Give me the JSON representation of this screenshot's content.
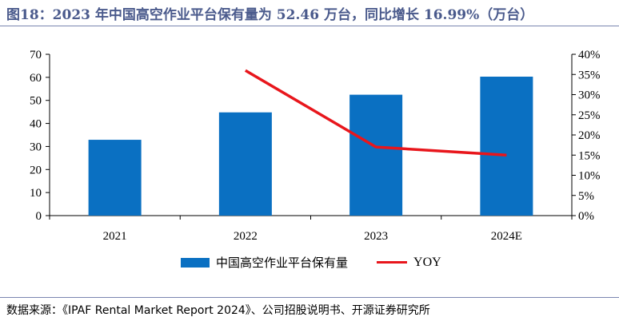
{
  "figure": {
    "title": "图18：2023 年中国高空作业平台保有量为 52.46 万台，同比增长 16.99%（万台）",
    "source": "数据来源：《IPAF Rental Market Report 2024》、公司招股说明书、开源证券研究所"
  },
  "colors": {
    "bar": "#0a70c2",
    "line": "#e8161c",
    "title": "#4a5a8c"
  },
  "chart_data": {
    "type": "bar",
    "categories": [
      "2021",
      "2022",
      "2023",
      "2024E"
    ],
    "series": [
      {
        "name": "中国高空作业平台保有量",
        "type": "bar",
        "axis": "left",
        "values": [
          32.9,
          44.8,
          52.46,
          60.3
        ]
      },
      {
        "name": "YOY",
        "type": "line",
        "axis": "right",
        "values": [
          null,
          0.36,
          0.17,
          0.15
        ]
      }
    ],
    "y_left": {
      "min": 0,
      "max": 70,
      "ticks": [
        0,
        10,
        20,
        30,
        40,
        50,
        60,
        70
      ]
    },
    "y_right": {
      "min": 0,
      "max": 0.4,
      "ticks": [
        0,
        0.05,
        0.1,
        0.15,
        0.2,
        0.25,
        0.3,
        0.35,
        0.4
      ],
      "tick_labels": [
        "0%",
        "5%",
        "10%",
        "15%",
        "20%",
        "25%",
        "30%",
        "35%",
        "40%"
      ]
    },
    "legend_position": "bottom",
    "grid": false
  }
}
